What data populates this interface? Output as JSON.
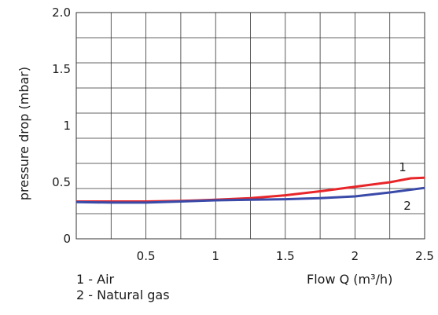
{
  "chart_data": {
    "type": "line",
    "xlabel": "Flow Q (m³/h)",
    "ylabel": "pressure drop (mbar)",
    "xlim": [
      0,
      2.5
    ],
    "ylim": [
      0,
      2.0
    ],
    "x_ticks": [
      "0.5",
      "1",
      "1.5",
      "2",
      "2.5"
    ],
    "y_ticks": [
      "0",
      "0.5",
      "1",
      "1.5",
      "2.0"
    ],
    "grid": true,
    "series": [
      {
        "name": "1",
        "color": "#e8262a",
        "x": [
          0,
          0.25,
          0.5,
          0.75,
          1.0,
          1.25,
          1.5,
          1.75,
          2.0,
          2.25,
          2.4,
          2.5
        ],
        "y": [
          0.33,
          0.33,
          0.33,
          0.335,
          0.345,
          0.36,
          0.385,
          0.42,
          0.46,
          0.5,
          0.535,
          0.54
        ]
      },
      {
        "name": "2",
        "color": "#3a4aa8",
        "x": [
          0,
          0.25,
          0.5,
          0.75,
          1.0,
          1.25,
          1.5,
          1.75,
          2.0,
          2.25,
          2.5
        ],
        "y": [
          0.325,
          0.32,
          0.32,
          0.33,
          0.34,
          0.345,
          0.35,
          0.36,
          0.375,
          0.41,
          0.45
        ]
      }
    ],
    "legend": [
      "1 - Air",
      "2 - Natural gas"
    ]
  }
}
